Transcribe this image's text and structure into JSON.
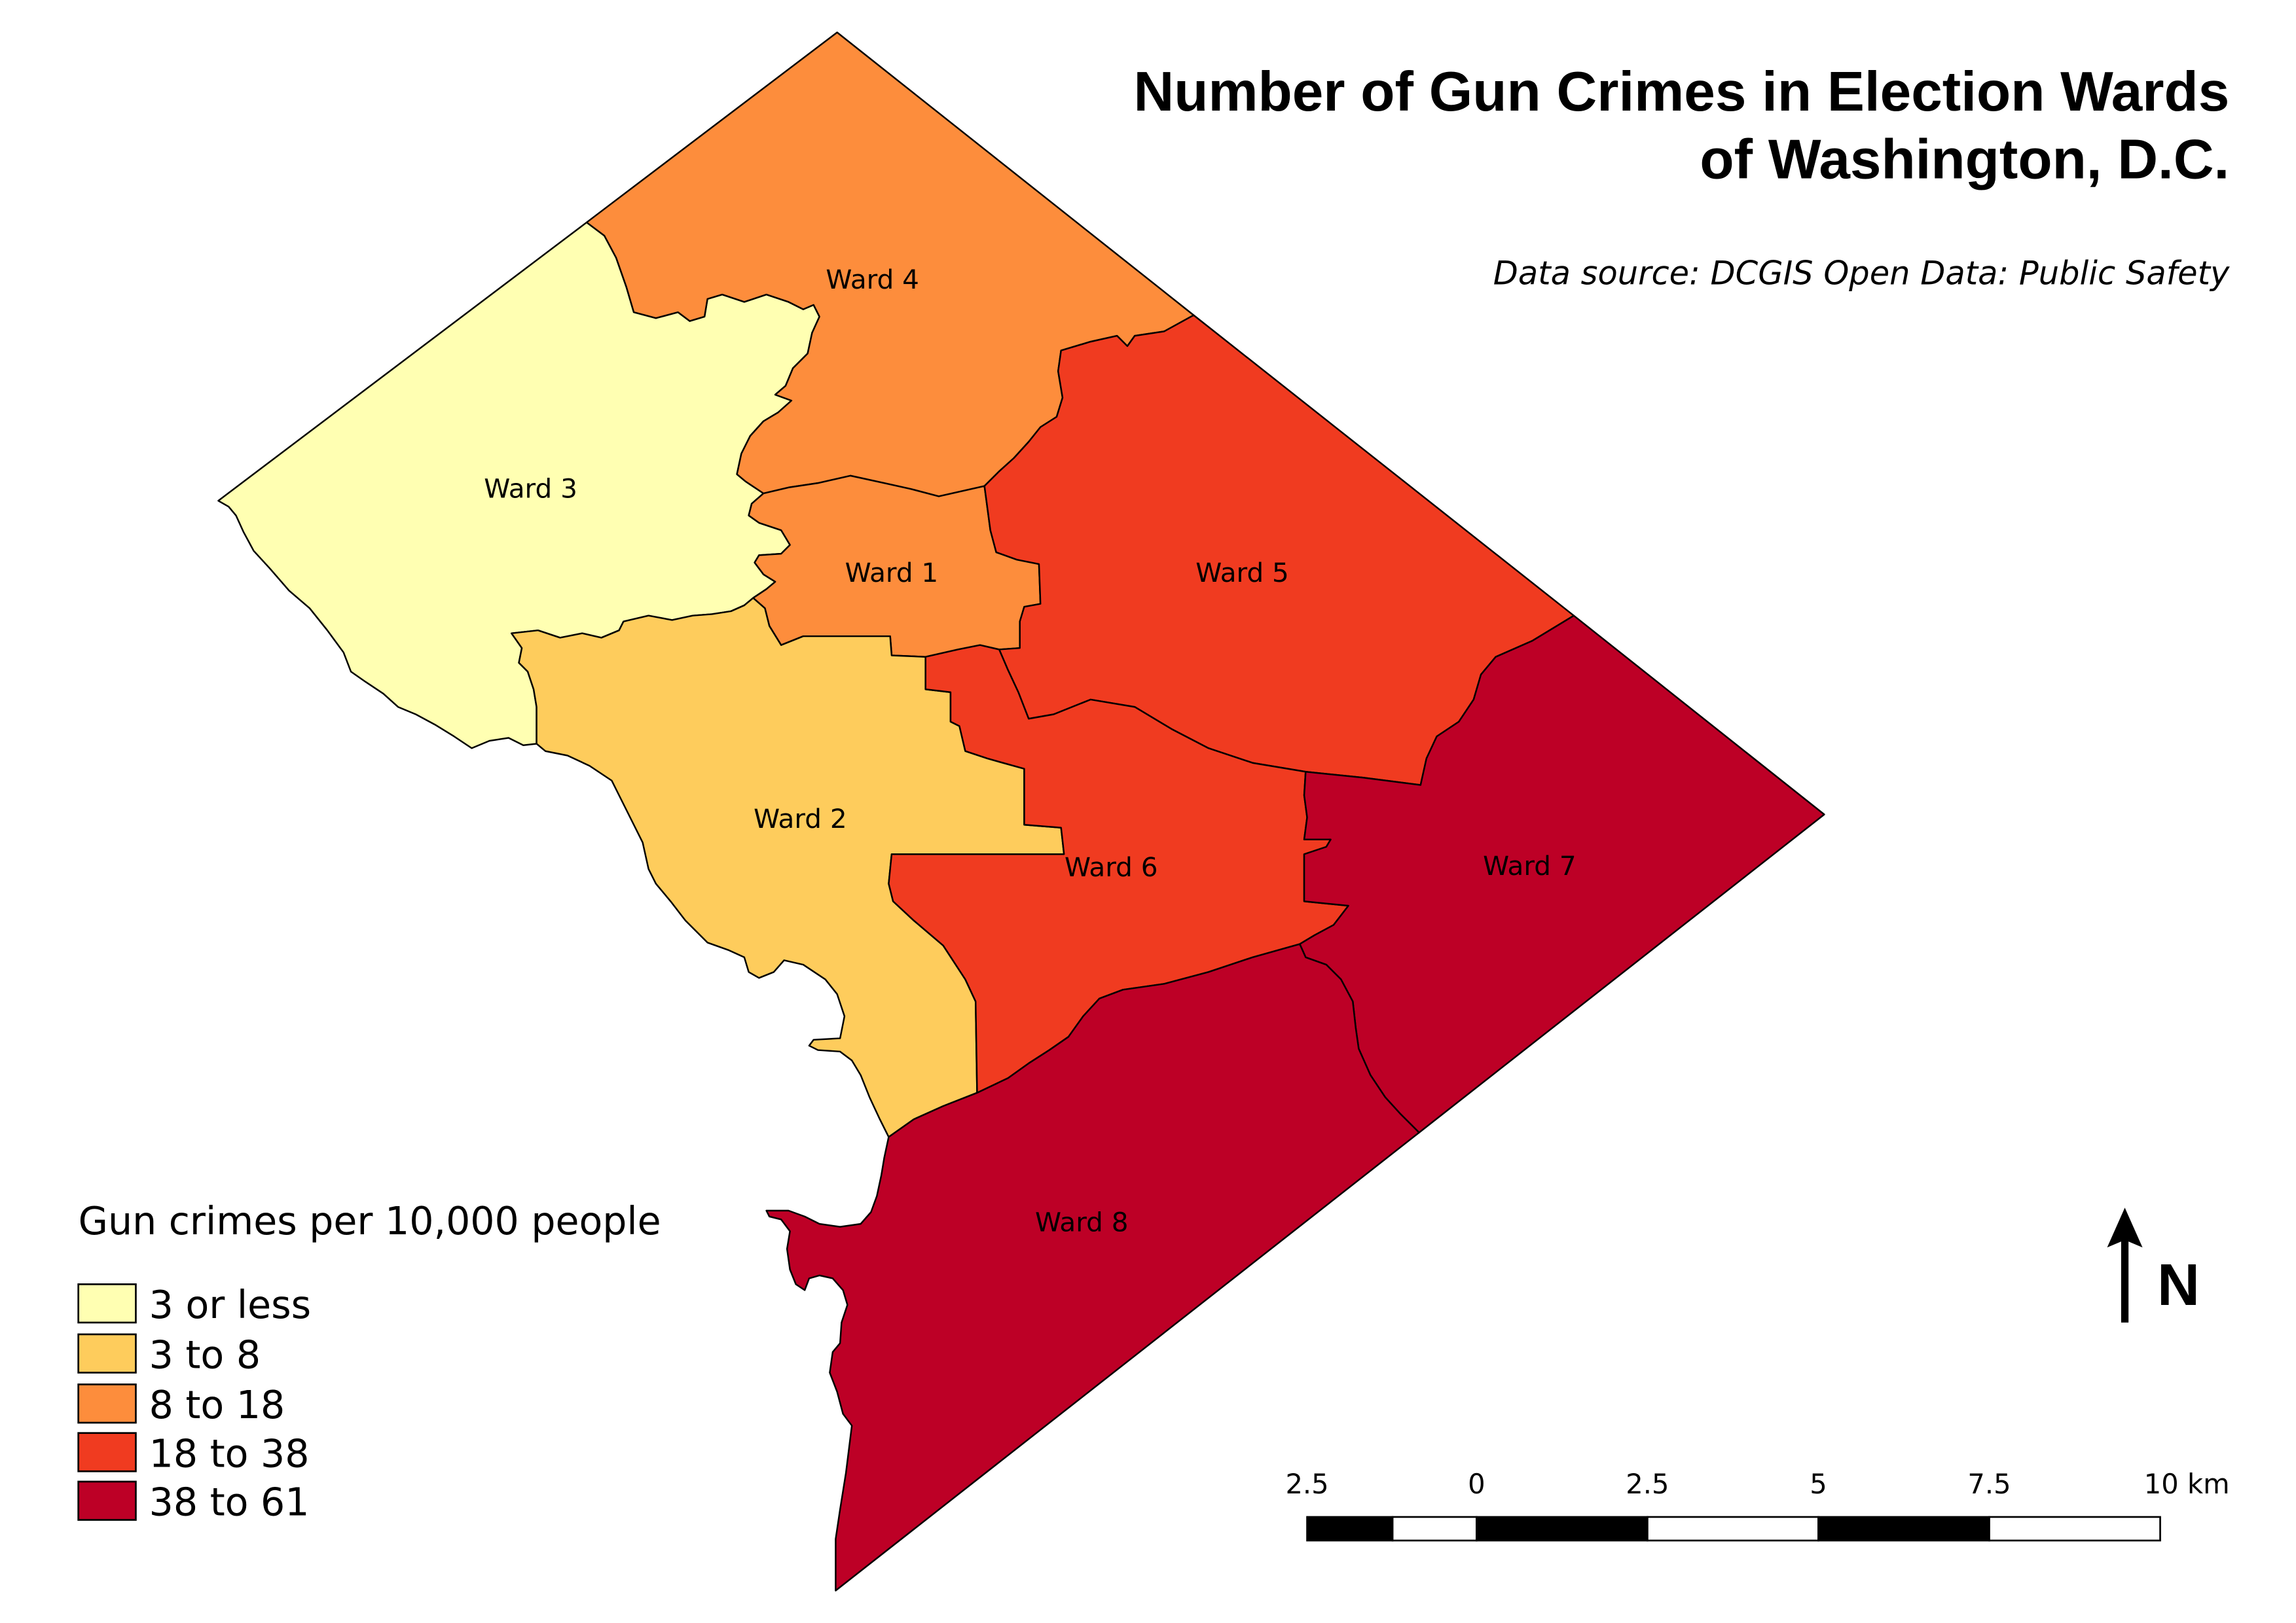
{
  "title": {
    "line1": "Number of Gun Crimes in Election Wards",
    "line2": "of Washington, D.C."
  },
  "data_source": "Data source: DCGIS Open Data: Public Safety",
  "map": {
    "wards": [
      {
        "label": "Ward 1",
        "color": "#fd8d3c"
      },
      {
        "label": "Ward 2",
        "color": "#fecc5c"
      },
      {
        "label": "Ward 3",
        "color": "#ffffb2"
      },
      {
        "label": "Ward 4",
        "color": "#fd8d3c"
      },
      {
        "label": "Ward 5",
        "color": "#f03b20"
      },
      {
        "label": "Ward 6",
        "color": "#f03b20"
      },
      {
        "label": "Ward 7",
        "color": "#bd0026"
      },
      {
        "label": "Ward 8",
        "color": "#bd0026"
      }
    ],
    "boundary_color": "#000000"
  },
  "legend": {
    "title": "Gun crimes per 10,000 people",
    "items": [
      {
        "label": "3 or less",
        "color": "#ffffb2"
      },
      {
        "label": "3 to 8",
        "color": "#fecc5c"
      },
      {
        "label": "8 to 18",
        "color": "#fd8d3c"
      },
      {
        "label": "18 to 38",
        "color": "#f03b20"
      },
      {
        "label": "38 to 61",
        "color": "#bd0026"
      }
    ]
  },
  "north_arrow": {
    "label": "N",
    "icon": "north-arrow-icon"
  },
  "scale_bar": {
    "labels": [
      "2.5",
      "0",
      "2.5",
      "5",
      "7.5",
      "10 km"
    ]
  }
}
